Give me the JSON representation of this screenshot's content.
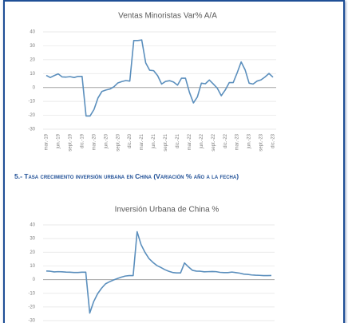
{
  "heading": "5.- Tasa crecimiento inversión urbana en China (Variación % año a la fecha)",
  "chart_data": [
    {
      "type": "line",
      "title": "Ventas Minoristas Var% A/A",
      "categories": [
        "mar.-19",
        null,
        null,
        "jun.-19",
        null,
        null,
        "sept.-19",
        null,
        null,
        "dic.-19",
        null,
        null,
        "mar.-20",
        null,
        null,
        "jun.-20",
        null,
        null,
        "sept.-20",
        null,
        null,
        "dic.-20",
        null,
        null,
        "mar.-21",
        null,
        null,
        "jun.-21",
        null,
        null,
        "sept.-21",
        null,
        null,
        "dic.-21",
        null,
        null,
        "mar.-22",
        null,
        null,
        "jun.-22",
        null,
        null,
        "sept.-22",
        null,
        null,
        "dic.-22",
        null,
        null,
        "mar.-23",
        null,
        null,
        "jun.-23",
        null,
        null,
        "sept.-23",
        null,
        null,
        "dic.-23"
      ],
      "values": [
        8.7,
        7.2,
        8.6,
        9.8,
        7.6,
        7.5,
        7.8,
        7.2,
        8.0,
        8.0,
        -20.5,
        -20.5,
        -15.8,
        -7.5,
        -2.8,
        -1.8,
        -1.1,
        0.5,
        3.3,
        4.3,
        5.0,
        4.6,
        33.8,
        33.8,
        34.2,
        17.7,
        12.4,
        12.1,
        8.5,
        2.5,
        4.4,
        4.9,
        3.9,
        1.7,
        6.7,
        6.7,
        -3.5,
        -11.1,
        -6.7,
        3.1,
        2.7,
        5.4,
        2.5,
        -0.5,
        -5.9,
        -1.8,
        3.5,
        3.5,
        10.6,
        18.4,
        12.7,
        3.1,
        2.5,
        4.6,
        5.5,
        7.6,
        10.1,
        7.4
      ],
      "color": "#5b8fbd",
      "ylim": [
        -30,
        40
      ],
      "yticks": [
        -30,
        -20,
        -10,
        0,
        10,
        20,
        30,
        40
      ],
      "grid": true
    },
    {
      "type": "line",
      "title": "Inversión Urbana de China %",
      "values": [
        6.3,
        6.1,
        5.6,
        5.8,
        5.7,
        5.5,
        5.4,
        5.2,
        5.2,
        5.4,
        5.4,
        -24.5,
        -16.1,
        -10.3,
        -6.3,
        -3.1,
        -1.6,
        -0.3,
        0.8,
        1.8,
        2.6,
        2.9,
        2.9,
        35.0,
        25.6,
        19.9,
        15.4,
        12.6,
        10.3,
        8.9,
        7.3,
        6.1,
        5.2,
        4.9,
        4.9,
        12.2,
        9.3,
        6.8,
        6.2,
        6.1,
        5.7,
        5.8,
        5.9,
        5.8,
        5.3,
        5.1,
        5.1,
        5.5,
        5.1,
        4.7,
        4.0,
        3.8,
        3.4,
        3.2,
        3.1,
        2.9,
        2.9,
        3.0
      ],
      "color": "#5b8fbd",
      "ylim": [
        -30,
        40
      ],
      "yticks": [
        -30,
        -20,
        -10,
        0,
        10,
        20,
        30,
        40
      ],
      "grid": true
    }
  ]
}
